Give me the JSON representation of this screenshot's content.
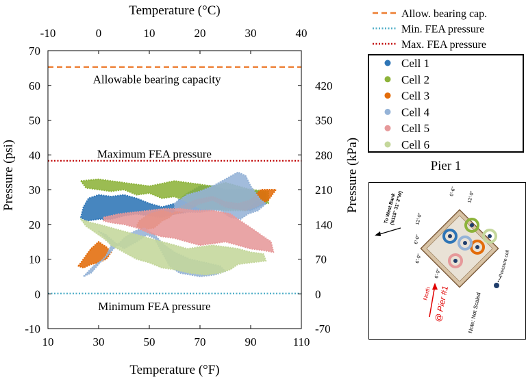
{
  "chart_data": {
    "type": "scatter",
    "xlabel": "Temperature (°F)",
    "x2label": "Temperature (°C)",
    "ylabel": "Pressure (psi)",
    "y2label": "Pressure (kPa)",
    "xlim": [
      10,
      110
    ],
    "ylim": [
      -10,
      70
    ],
    "x2lim": [
      -10,
      40
    ],
    "y2lim": [
      -70,
      490
    ],
    "x_ticks": [
      "10",
      "30",
      "50",
      "70",
      "90",
      "110"
    ],
    "y_ticks": [
      "-10",
      "0",
      "10",
      "20",
      "30",
      "40",
      "50",
      "60",
      "70"
    ],
    "x2_ticks": [
      "-10",
      "0",
      "10",
      "20",
      "30",
      "40"
    ],
    "y2_ticks": [
      "-70",
      "0",
      "70",
      "140",
      "210",
      "280",
      "350",
      "420"
    ],
    "grid": false,
    "reference_lines": [
      {
        "name": "Allow. bearing cap.",
        "y": 65.3,
        "color": "#ed7d31",
        "style": "dashed",
        "annotation": "Allowable bearing capacity",
        "annotation_x": 53,
        "annotation_y": 61.8
      },
      {
        "name": "Min. FEA pressure",
        "y": 0.1,
        "color": "#4bacc6",
        "style": "dotted",
        "annotation": "Minimum FEA pressure",
        "annotation_x": 52,
        "annotation_y": -3.5
      },
      {
        "name": "Max. FEA pressure",
        "y": 38.3,
        "color": "#c00000",
        "style": "dotted",
        "annotation": "Maximum FEA pressure",
        "annotation_x": 52,
        "annotation_y": 40.3
      }
    ],
    "series": [
      {
        "name": "Cell 1",
        "color": "#2e75b6",
        "regions": [
          {
            "points": [
              [
                23,
                22
              ],
              [
                24,
                25
              ],
              [
                26,
                27.5
              ],
              [
                30,
                28.5
              ],
              [
                35,
                28
              ],
              [
                40,
                28.5
              ],
              [
                45,
                27.5
              ],
              [
                50,
                26
              ],
              [
                55,
                25
              ],
              [
                60,
                26
              ],
              [
                65,
                29
              ],
              [
                70,
                31
              ],
              [
                75,
                31
              ],
              [
                80,
                30
              ],
              [
                90,
                30
              ],
              [
                96,
                29
              ],
              [
                96,
                26
              ],
              [
                90,
                24
              ],
              [
                80,
                24.5
              ],
              [
                70,
                24
              ],
              [
                60,
                23
              ],
              [
                55,
                22
              ],
              [
                50,
                22.5
              ],
              [
                45,
                23
              ],
              [
                40,
                22.5
              ],
              [
                35,
                21.5
              ],
              [
                30,
                21.5
              ],
              [
                25,
                21
              ]
            ]
          }
        ]
      },
      {
        "name": "Cell 2",
        "color": "#8db33a",
        "regions": [
          {
            "points": [
              [
                23,
                32.5
              ],
              [
                30,
                33
              ],
              [
                40,
                32
              ],
              [
                50,
                31
              ],
              [
                60,
                32.5
              ],
              [
                70,
                31.5
              ],
              [
                75,
                31
              ],
              [
                80,
                32
              ],
              [
                85,
                31
              ],
              [
                90,
                30
              ],
              [
                97,
                29.5
              ],
              [
                97,
                26
              ],
              [
                92,
                27
              ],
              [
                88,
                24
              ],
              [
                80,
                24
              ],
              [
                70,
                24.5
              ],
              [
                65,
                26.5
              ],
              [
                60,
                28
              ],
              [
                55,
                27.5
              ],
              [
                50,
                29
              ],
              [
                45,
                28.5
              ],
              [
                40,
                30
              ],
              [
                35,
                29.5
              ],
              [
                30,
                30
              ],
              [
                25,
                30.5
              ]
            ]
          }
        ]
      },
      {
        "name": "Cell 3",
        "color": "#e36c0a",
        "regions": [
          {
            "points": [
              [
                46,
                21
              ],
              [
                50,
                23
              ],
              [
                55,
                24
              ],
              [
                60,
                23
              ],
              [
                65,
                24
              ],
              [
                70,
                26
              ],
              [
                75,
                27
              ],
              [
                80,
                25
              ],
              [
                88,
                24
              ],
              [
                92,
                25
              ],
              [
                97,
                27
              ],
              [
                100,
                30
              ],
              [
                94,
                30
              ],
              [
                90,
                27
              ],
              [
                85,
                26
              ],
              [
                80,
                26.5
              ],
              [
                75,
                28
              ],
              [
                68,
                27
              ],
              [
                62,
                25
              ],
              [
                58,
                22
              ],
              [
                55,
                21
              ],
              [
                52,
                19
              ],
              [
                48,
                18.5
              ],
              [
                45,
                19.5
              ]
            ]
          },
          {
            "points": [
              [
                22,
                8
              ],
              [
                24,
                10
              ],
              [
                27,
                13
              ],
              [
                30,
                15
              ],
              [
                33,
                13.5
              ],
              [
                35,
                12
              ],
              [
                33,
                10
              ],
              [
                30,
                9
              ],
              [
                27,
                8.5
              ],
              [
                24,
                7.5
              ]
            ]
          }
        ]
      },
      {
        "name": "Cell 4",
        "color": "#95b3d7",
        "regions": [
          {
            "points": [
              [
                60,
                26
              ],
              [
                65,
                28.5
              ],
              [
                70,
                29.5
              ],
              [
                75,
                31
              ],
              [
                80,
                33
              ],
              [
                85,
                35
              ],
              [
                88,
                34
              ],
              [
                90,
                31
              ],
              [
                92,
                29
              ],
              [
                94,
                27
              ],
              [
                96,
                26
              ],
              [
                93,
                24
              ],
              [
                89,
                23
              ],
              [
                86,
                21.5
              ],
              [
                82,
                22
              ],
              [
                78,
                24
              ],
              [
                74,
                24
              ],
              [
                70,
                23.5
              ],
              [
                65,
                23.5
              ],
              [
                60,
                24
              ]
            ]
          },
          {
            "points": [
              [
                30,
                18
              ],
              [
                33,
                17
              ],
              [
                36,
                15
              ],
              [
                40,
                13
              ],
              [
                45,
                15
              ],
              [
                49,
                17
              ],
              [
                52,
                16
              ],
              [
                55,
                12
              ],
              [
                58,
                8
              ],
              [
                62,
                6
              ],
              [
                70,
                5
              ],
              [
                76,
                5.5
              ],
              [
                80,
                6.5
              ],
              [
                78,
                8
              ],
              [
                72,
                9
              ],
              [
                66,
                10
              ],
              [
                60,
                12
              ],
              [
                56,
                14
              ],
              [
                52,
                17
              ],
              [
                48,
                19
              ],
              [
                44,
                18
              ],
              [
                40,
                16
              ],
              [
                36,
                13
              ],
              [
                32,
                10
              ],
              [
                28,
                8
              ],
              [
                24,
                5
              ],
              [
                27,
                6
              ],
              [
                30,
                8.5
              ],
              [
                33,
                11
              ],
              [
                35,
                14
              ],
              [
                33,
                16
              ]
            ]
          }
        ]
      },
      {
        "name": "Cell 5",
        "color": "#e6999a",
        "regions": [
          {
            "points": [
              [
                32,
                22
              ],
              [
                38,
                23
              ],
              [
                44,
                23.5
              ],
              [
                50,
                24
              ],
              [
                56,
                24.5
              ],
              [
                62,
                24.5
              ],
              [
                68,
                24
              ],
              [
                75,
                24
              ],
              [
                82,
                23
              ],
              [
                86,
                21
              ],
              [
                90,
                19
              ],
              [
                94,
                17
              ],
              [
                98,
                15
              ],
              [
                99,
                12
              ],
              [
                95,
                12.5
              ],
              [
                90,
                13
              ],
              [
                85,
                14
              ],
              [
                80,
                15
              ],
              [
                75,
                14.5
              ],
              [
                70,
                14
              ],
              [
                65,
                15
              ],
              [
                60,
                16
              ],
              [
                55,
                16.5
              ],
              [
                50,
                17.5
              ],
              [
                45,
                19
              ],
              [
                40,
                20
              ],
              [
                35,
                20.5
              ],
              [
                32,
                21
              ]
            ]
          }
        ]
      },
      {
        "name": "Cell 6",
        "color": "#c4d79b",
        "regions": [
          {
            "points": [
              [
                23,
                21.5
              ],
              [
                27,
                20.5
              ],
              [
                30,
                20
              ],
              [
                35,
                19
              ],
              [
                40,
                18
              ],
              [
                45,
                17
              ],
              [
                50,
                16
              ],
              [
                55,
                15
              ],
              [
                60,
                14
              ],
              [
                65,
                13
              ],
              [
                70,
                13.5
              ],
              [
                75,
                14
              ],
              [
                80,
                13.5
              ],
              [
                85,
                13
              ],
              [
                90,
                12
              ],
              [
                95,
                11.5
              ],
              [
                96,
                9.5
              ],
              [
                90,
                9
              ],
              [
                85,
                8.5
              ],
              [
                82,
                7
              ],
              [
                78,
                6
              ],
              [
                72,
                5.5
              ],
              [
                66,
                6
              ],
              [
                60,
                7
              ],
              [
                55,
                7.5
              ],
              [
                50,
                9
              ],
              [
                45,
                10
              ],
              [
                40,
                12
              ],
              [
                35,
                14
              ],
              [
                32,
                16
              ],
              [
                28,
                18
              ],
              [
                25,
                19.5
              ]
            ]
          }
        ]
      }
    ]
  },
  "legend": {
    "line_items": [
      {
        "label": "Allow. bearing cap.",
        "color": "#ed7d31",
        "style": "dashed"
      },
      {
        "label": "Min. FEA pressure",
        "color": "#4bacc6",
        "style": "dotted"
      },
      {
        "label": "Max. FEA pressure",
        "color": "#c00000",
        "style": "dotted"
      }
    ],
    "cell_items": [
      {
        "label": "Cell 1",
        "color": "#2e75b6"
      },
      {
        "label": "Cell 2",
        "color": "#8db33a"
      },
      {
        "label": "Cell 3",
        "color": "#e36c0a"
      },
      {
        "label": "Cell 4",
        "color": "#95b3d7"
      },
      {
        "label": "Cell 5",
        "color": "#e6999a"
      },
      {
        "label": "Cell 6",
        "color": "#c4d79b"
      }
    ]
  },
  "pier": {
    "title": "Pier 1",
    "arrow_label_1": "To West Bank",
    "arrow_label_2": "(N115° 31' 3\"W)",
    "north_label": "North",
    "pier_label": "@ Pier #1",
    "note": "Note: Not Scaled",
    "pressure_cell_label": "Pressure cell",
    "dims": [
      "0'-6\"",
      "12'-0\"",
      "12'-0\"",
      "6'-0\"",
      "6'-0\"",
      "6'-0\""
    ],
    "ring_colors": [
      "#2e75b6",
      "#8db33a",
      "#e36c0a",
      "#95b3d7",
      "#e6999a",
      "#c4d79b"
    ]
  }
}
